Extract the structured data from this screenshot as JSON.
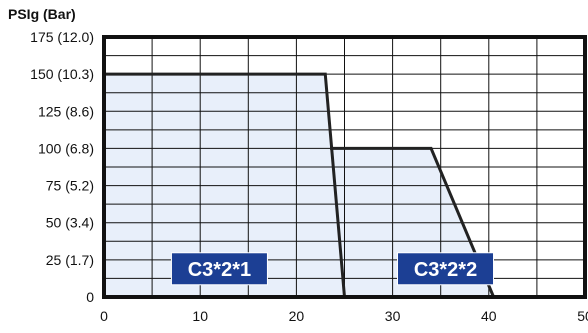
{
  "chart_data": {
    "type": "area",
    "ylabel": "PSIg (Bar)",
    "xlabel": "",
    "xlim": [
      0,
      50
    ],
    "ylim": [
      0,
      175
    ],
    "x_ticks": [
      0,
      10,
      20,
      30,
      40,
      50
    ],
    "x_tick_labels": [
      "0",
      "10",
      "20",
      "30",
      "40",
      "50"
    ],
    "y_ticks": [
      0,
      25,
      50,
      75,
      100,
      125,
      150,
      175
    ],
    "y_tick_labels": [
      "0",
      "25 (1.7)",
      "50 (3.4)",
      "75 (5.2)",
      "100 (6.8)",
      "125 (8.6)",
      "150 (10.3)",
      "175 (12.0)"
    ],
    "grid": true,
    "grid_x_step": 5,
    "grid_y_step": 12.5,
    "series": [
      {
        "name": "C3*2*1",
        "x": [
          0,
          23,
          25
        ],
        "y": [
          150,
          150,
          0
        ]
      },
      {
        "name": "C3*2*2",
        "x": [
          23.5,
          34,
          40.5
        ],
        "y": [
          100,
          100,
          0
        ]
      }
    ],
    "region_labels": [
      {
        "text": "C3*2*1",
        "x": 12,
        "y": 19
      },
      {
        "text": "C3*2*2",
        "x": 35.5,
        "y": 19
      }
    ],
    "colors": {
      "fill": "#e8effa",
      "line": "#222222",
      "frame": "#111111",
      "grid": "#111111",
      "label_bg": "#1c3f94"
    }
  }
}
